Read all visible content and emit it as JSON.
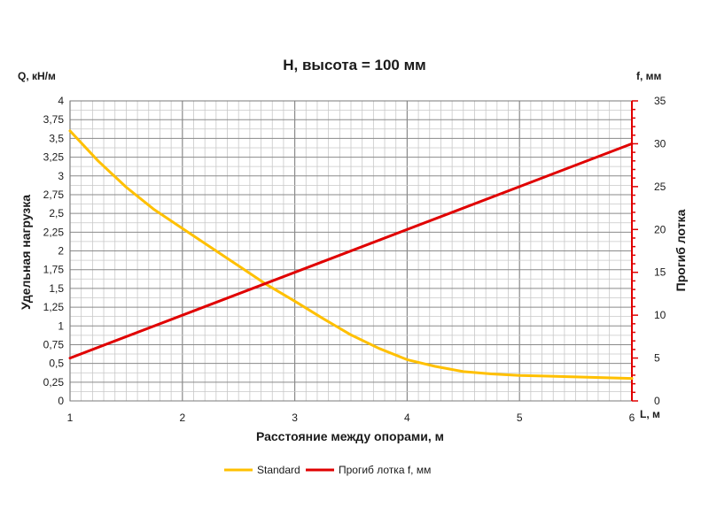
{
  "chart_data": {
    "type": "line",
    "title": "H, высота = 100 мм",
    "xlabel": "Расстояние между опорами, м",
    "ylabel_left": "Удельная нагрузка",
    "ylabel_right": "Прогиб лотка",
    "left_unit": "Q, кН/м",
    "right_unit": "f, мм",
    "x_unit": "L, м",
    "xlim": [
      1,
      6
    ],
    "ylim_left": [
      0,
      4
    ],
    "ylim_right": [
      0,
      35
    ],
    "x_ticks": [
      "1",
      "2",
      "3",
      "4",
      "5",
      "6"
    ],
    "y_ticks_left": [
      "0",
      "0,25",
      "0,5",
      "0,75",
      "1",
      "1,25",
      "1,5",
      "1,75",
      "2",
      "2,25",
      "2,5",
      "2,75",
      "3",
      "3,25",
      "3,5",
      "3,75",
      "4"
    ],
    "y_ticks_right": [
      "0",
      "5",
      "10",
      "15",
      "20",
      "25",
      "30",
      "35"
    ],
    "grid": true,
    "legend_position": "bottom",
    "series": [
      {
        "name": "Standard",
        "axis": "left",
        "color": "#FFC000",
        "x": [
          1,
          1.25,
          1.5,
          1.75,
          2,
          2.25,
          2.5,
          2.75,
          3,
          3.25,
          3.5,
          3.75,
          4,
          4.25,
          4.5,
          4.75,
          5,
          5.25,
          5.5,
          5.75,
          6
        ],
        "y": [
          3.6,
          3.2,
          2.85,
          2.55,
          2.3,
          2.05,
          1.8,
          1.55,
          1.33,
          1.1,
          0.88,
          0.7,
          0.55,
          0.46,
          0.39,
          0.36,
          0.34,
          0.33,
          0.32,
          0.31,
          0.3
        ]
      },
      {
        "name": "Прогиб лотка f, мм",
        "axis": "right",
        "color": "#E00000",
        "x": [
          1,
          6
        ],
        "y": [
          5,
          30
        ]
      }
    ]
  }
}
